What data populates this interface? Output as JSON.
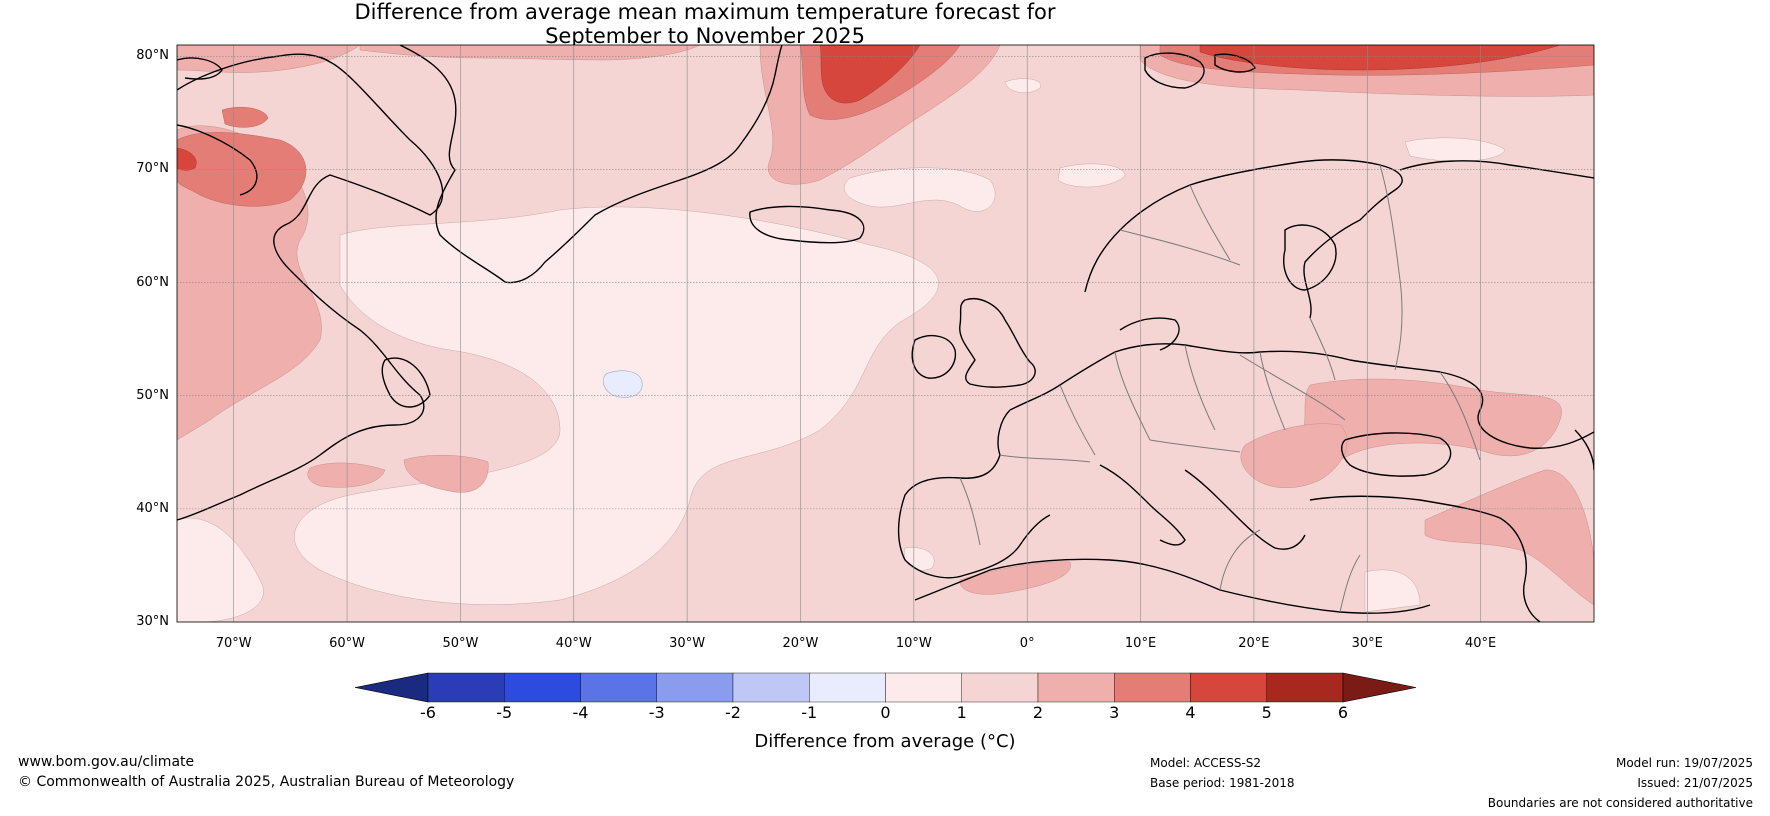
{
  "title": {
    "line1": "Difference from average mean maximum temperature forecast for",
    "line2": "September to November 2025"
  },
  "map": {
    "latitude_labels": [
      "80°N",
      "70°N",
      "60°N",
      "50°N",
      "40°N",
      "30°N"
    ],
    "longitude_labels": [
      "70°W",
      "60°W",
      "50°W",
      "40°W",
      "30°W",
      "20°W",
      "10°W",
      "0°",
      "10°E",
      "20°E",
      "30°E",
      "40°E"
    ],
    "extent": {
      "lon_min": -75,
      "lon_max": 50,
      "lat_min": 30,
      "lat_max": 81
    }
  },
  "colorbar": {
    "title": "Difference from average (°C)",
    "ticks": [
      "-6",
      "-5",
      "-4",
      "-3",
      "-2",
      "-1",
      "0",
      "1",
      "2",
      "3",
      "4",
      "5",
      "6"
    ],
    "colors": {
      "below_-6": "#1a2a80",
      "-6_-5": "#2a3db6",
      "-5_-4": "#2e4be0",
      "-4_-3": "#5a74e8",
      "-3_-2": "#8a9cee",
      "-2_-1": "#bec7f5",
      "-1_0": "#e8ecfc",
      "0_1": "#fcebea",
      "1_2": "#f5d5d4",
      "2_3": "#efafad",
      "3_4": "#e57d77",
      "4_5": "#d6463c",
      "5_6": "#a8271f",
      "above_6": "#7a1b16"
    }
  },
  "footer": {
    "website": "www.bom.gov.au/climate",
    "copyright": "© Commonwealth of Australia 2025, Australian Bureau of Meteorology",
    "model": "Model: ACCESS-S2",
    "base_period": "Base period: 1981-2018",
    "model_run": "Model run: 19/07/2025",
    "issued": "Issued: 21/07/2025",
    "disclaimer": "Boundaries are not considered authoritative"
  }
}
